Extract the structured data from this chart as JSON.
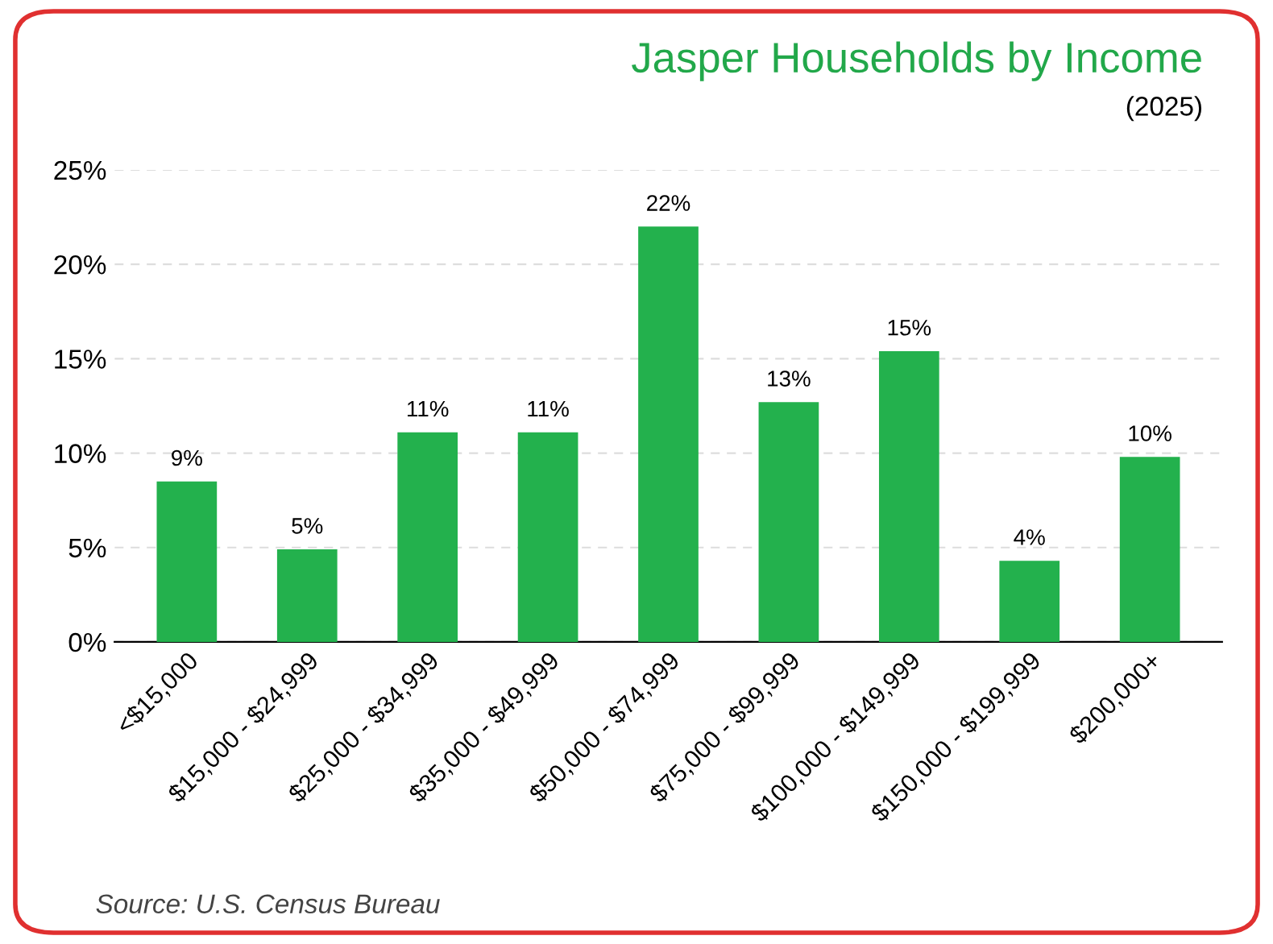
{
  "chart_data": {
    "type": "bar",
    "title": "Jasper Households by Income",
    "subtitle": "(2025)",
    "categories": [
      "<$15,000",
      "$15,000 - $24,999",
      "$25,000 - $34,999",
      "$35,000 - $49,999",
      "$50,000 - $74,999",
      "$75,000 - $99,999",
      "$100,000 - $149,999",
      "$150,000 - $199,999",
      "$200,000+"
    ],
    "values": [
      8.5,
      4.9,
      11.1,
      11.1,
      22.0,
      12.7,
      15.4,
      4.3,
      9.8
    ],
    "value_labels": [
      "9%",
      "5%",
      "11%",
      "11%",
      "22%",
      "13%",
      "15%",
      "4%",
      "10%"
    ],
    "color": "#23b14d",
    "ylim": [
      0,
      25
    ],
    "yticks": [
      {
        "value": 0,
        "label": "0%"
      },
      {
        "value": 5,
        "label": "5%"
      },
      {
        "value": 10,
        "label": "10%"
      },
      {
        "value": 15,
        "label": "15%"
      },
      {
        "value": 20,
        "label": "20%"
      },
      {
        "value": 25,
        "label": "25%"
      }
    ],
    "grid": "y",
    "annotations": [
      "Source: U.S. Census Bureau"
    ]
  }
}
